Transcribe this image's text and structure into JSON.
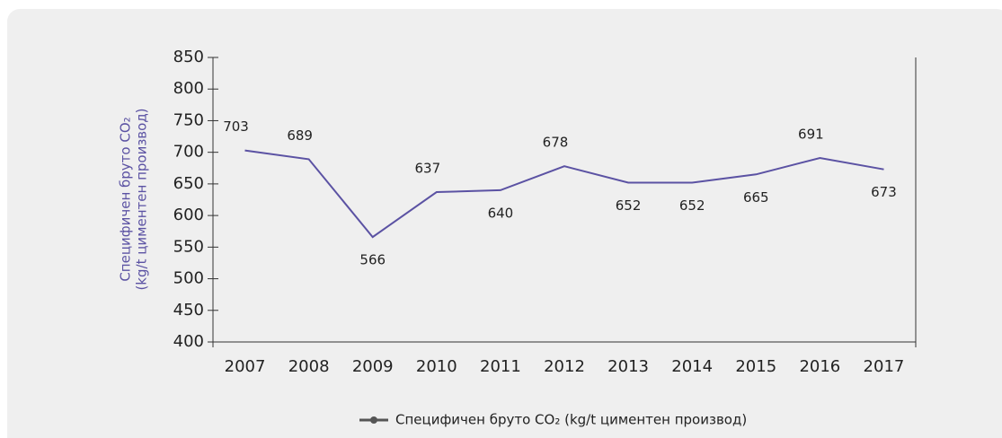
{
  "chart_data": {
    "type": "line",
    "ylabel": [
      "Специфичен бруто CO₂",
      "(kg/t циментен производ)"
    ],
    "categories": [
      "2007",
      "2008",
      "2009",
      "2010",
      "2011",
      "2012",
      "2013",
      "2014",
      "2015",
      "2016",
      "2017"
    ],
    "series": [
      {
        "name": "Специфичен бруто CO₂ (kg/t циментен производ)",
        "color": "#5b52a3",
        "values": [
          703,
          689,
          566,
          637,
          640,
          678,
          652,
          652,
          665,
          691,
          673
        ]
      }
    ],
    "ylim": [
      400,
      850
    ],
    "yticks": [
      400,
      450,
      500,
      550,
      600,
      650,
      700,
      750,
      800,
      850
    ],
    "grid": false,
    "legend": "bottom"
  }
}
